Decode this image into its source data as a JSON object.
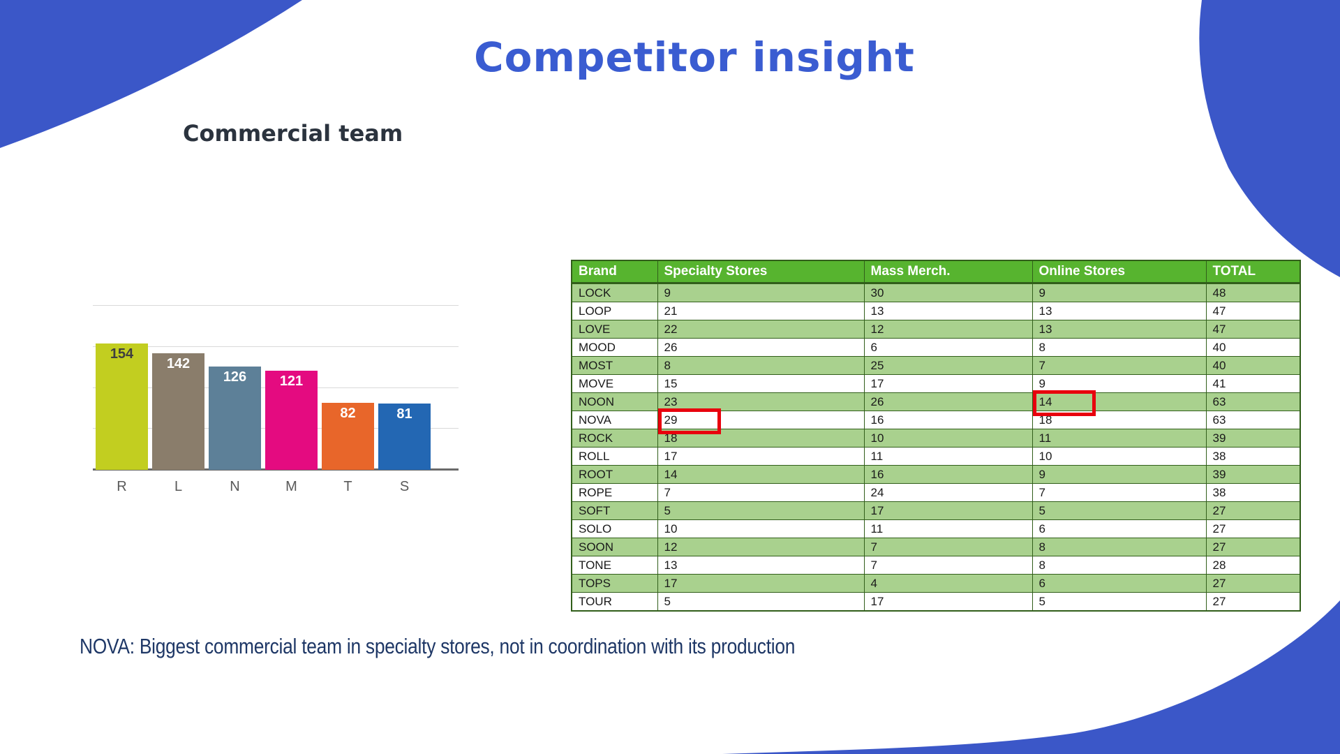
{
  "slide": {
    "title": "Competitor insight",
    "subtitle": "Commercial team",
    "footnote": "NOVA: Biggest commercial team in specialty stores, not in coordination with its production"
  },
  "colors": {
    "blob_blue": "#3b57c8",
    "title_blue": "#3a5cd1",
    "charcoal": "#2b333e",
    "navy": "#1e3766",
    "table_header_green": "#57b42f",
    "table_row_green": "#a9d18e",
    "table_border_green": "#315e1a",
    "highlight_red": "#e8000d"
  },
  "chart_data": {
    "type": "bar",
    "categories": [
      "R",
      "L",
      "N",
      "M",
      "T",
      "S"
    ],
    "values": [
      154,
      142,
      126,
      121,
      82,
      81
    ],
    "bar_colors": [
      "#c2ce20",
      "#8a7d6b",
      "#5d8098",
      "#e40b80",
      "#e8662a",
      "#2367b3"
    ],
    "value_label_colors": [
      "#3f3f3f",
      "#ffffff",
      "#ffffff",
      "#ffffff",
      "#ffffff",
      "#ffffff"
    ],
    "title": "",
    "xlabel": "",
    "ylabel": "",
    "ylim": [
      0,
      200
    ],
    "gridline_step": 50,
    "grid": true,
    "legend": "none",
    "value_labels_position": "inside-top"
  },
  "table": {
    "headers": [
      "Brand",
      "Specialty Stores",
      "Mass Merch.",
      "Online Stores",
      "TOTAL"
    ],
    "rows": [
      [
        "LOCK",
        9,
        30,
        9,
        48
      ],
      [
        "LOOP",
        21,
        13,
        13,
        47
      ],
      [
        "LOVE",
        22,
        12,
        13,
        47
      ],
      [
        "MOOD",
        26,
        6,
        8,
        40
      ],
      [
        "MOST",
        8,
        25,
        7,
        40
      ],
      [
        "MOVE",
        15,
        17,
        9,
        41
      ],
      [
        "NOON",
        23,
        26,
        14,
        63
      ],
      [
        "NOVA",
        29,
        16,
        18,
        63
      ],
      [
        "ROCK",
        18,
        10,
        11,
        39
      ],
      [
        "ROLL",
        17,
        11,
        10,
        38
      ],
      [
        "ROOT",
        14,
        16,
        9,
        39
      ],
      [
        "ROPE",
        7,
        24,
        7,
        38
      ],
      [
        "SOFT",
        5,
        17,
        5,
        27
      ],
      [
        "SOLO",
        10,
        11,
        6,
        27
      ],
      [
        "SOON",
        12,
        7,
        8,
        27
      ],
      [
        "TONE",
        13,
        7,
        8,
        28
      ],
      [
        "TOPS",
        17,
        4,
        6,
        27
      ],
      [
        "TOUR",
        5,
        17,
        5,
        27
      ]
    ]
  },
  "annotations": {
    "highlights": [
      {
        "brand": "NOON",
        "column": "Online Stores",
        "value": 14
      },
      {
        "brand": "NOVA",
        "column": "Specialty Stores",
        "value": 29
      }
    ]
  }
}
